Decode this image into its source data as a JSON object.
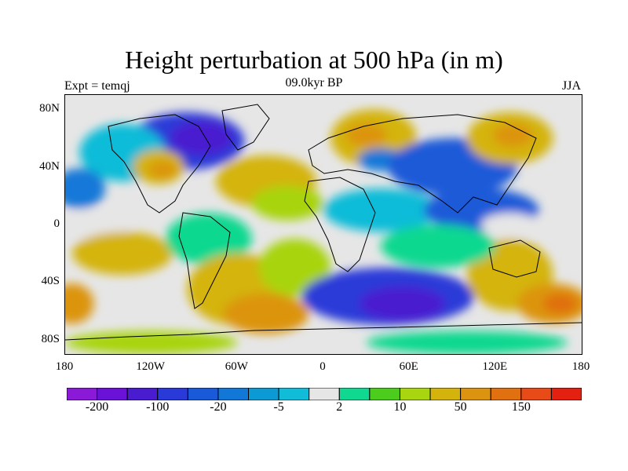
{
  "title": "Height perturbation at 500 hPa (in m)",
  "left_string": "Expt = temqj",
  "center_string": "09.0kyr BP",
  "right_string": "JJA",
  "map": {
    "projection": "cylindrical-equidistant",
    "lon_range": [
      -180,
      180
    ],
    "lat_range": [
      -90,
      90
    ],
    "lat_ticks": [
      {
        "value": 80,
        "label": "80N"
      },
      {
        "value": 40,
        "label": "40N"
      },
      {
        "value": 0,
        "label": "0"
      },
      {
        "value": -40,
        "label": "40S"
      },
      {
        "value": -80,
        "label": "80S"
      }
    ],
    "lon_ticks": [
      {
        "value": -180,
        "label": "180"
      },
      {
        "value": -120,
        "label": "120W"
      },
      {
        "value": -60,
        "label": "60W"
      },
      {
        "value": 0,
        "label": "0"
      },
      {
        "value": 60,
        "label": "60E"
      },
      {
        "value": 120,
        "label": "120E"
      },
      {
        "value": 180,
        "label": "180"
      }
    ],
    "background_color": "#e6e6e6",
    "coastline_color": "#000000"
  },
  "colorbar": {
    "colors": [
      "#8a1ad8",
      "#6a12d8",
      "#4a1cd0",
      "#2a3ad8",
      "#1a5ad8",
      "#1278d8",
      "#0c9ad4",
      "#10bcd8",
      "#e6e6e6",
      "#10d890",
      "#4ccc1c",
      "#a8d410",
      "#d4b40c",
      "#dc9410",
      "#e07010",
      "#e84a18",
      "#e42010"
    ],
    "label_positions_index": [
      1,
      3,
      5,
      7,
      9,
      11,
      13,
      15
    ],
    "labels": [
      "-200",
      "-100",
      "-20",
      "-5",
      "2",
      "10",
      "50",
      "150"
    ]
  },
  "field_blobs": [
    {
      "lon": -95,
      "lat": 58,
      "rx": 40,
      "ry": 20,
      "color": "#2a3ad8"
    },
    {
      "lon": -85,
      "lat": 60,
      "rx": 22,
      "ry": 12,
      "color": "#4a1cd0"
    },
    {
      "lon": -140,
      "lat": 50,
      "rx": 30,
      "ry": 20,
      "color": "#10bcd8"
    },
    {
      "lon": -115,
      "lat": 40,
      "rx": 18,
      "ry": 12,
      "color": "#d4b40c"
    },
    {
      "lon": -112,
      "lat": 38,
      "rx": 10,
      "ry": 6,
      "color": "#dc9410"
    },
    {
      "lon": -40,
      "lat": 30,
      "rx": 35,
      "ry": 18,
      "color": "#d4b40c"
    },
    {
      "lon": -25,
      "lat": 15,
      "rx": 25,
      "ry": 12,
      "color": "#a8d410"
    },
    {
      "lon": 35,
      "lat": 60,
      "rx": 30,
      "ry": 20,
      "color": "#d4b40c"
    },
    {
      "lon": 30,
      "lat": 62,
      "rx": 14,
      "ry": 8,
      "color": "#dc9410"
    },
    {
      "lon": 40,
      "lat": 45,
      "rx": 16,
      "ry": 8,
      "color": "#1278d8"
    },
    {
      "lon": 90,
      "lat": 40,
      "rx": 45,
      "ry": 20,
      "color": "#1a5ad8"
    },
    {
      "lon": 130,
      "lat": 60,
      "rx": 30,
      "ry": 18,
      "color": "#d4b40c"
    },
    {
      "lon": 132,
      "lat": 62,
      "rx": 14,
      "ry": 8,
      "color": "#dc9410"
    },
    {
      "lon": -170,
      "lat": 25,
      "rx": 18,
      "ry": 14,
      "color": "#1278d8"
    },
    {
      "lon": -160,
      "lat": 0,
      "rx": 25,
      "ry": 10,
      "color": "#e6e6e6"
    },
    {
      "lon": -140,
      "lat": -20,
      "rx": 35,
      "ry": 15,
      "color": "#d4b40c"
    },
    {
      "lon": -80,
      "lat": -10,
      "rx": 30,
      "ry": 18,
      "color": "#10d890"
    },
    {
      "lon": -60,
      "lat": -45,
      "rx": 35,
      "ry": 25,
      "color": "#d4b40c"
    },
    {
      "lon": -40,
      "lat": -62,
      "rx": 30,
      "ry": 14,
      "color": "#dc9410"
    },
    {
      "lon": -20,
      "lat": -30,
      "rx": 25,
      "ry": 20,
      "color": "#a8d410"
    },
    {
      "lon": 45,
      "lat": -50,
      "rx": 60,
      "ry": 20,
      "color": "#2a3ad8"
    },
    {
      "lon": 55,
      "lat": -55,
      "rx": 30,
      "ry": 12,
      "color": "#4a1cd0"
    },
    {
      "lon": 130,
      "lat": -35,
      "rx": 30,
      "ry": 25,
      "color": "#d4b40c"
    },
    {
      "lon": 160,
      "lat": -55,
      "rx": 25,
      "ry": 14,
      "color": "#dc9410"
    },
    {
      "lon": 165,
      "lat": -55,
      "rx": 12,
      "ry": 7,
      "color": "#e07010"
    },
    {
      "lon": -175,
      "lat": -55,
      "rx": 15,
      "ry": 14,
      "color": "#dc9410"
    },
    {
      "lon": 40,
      "lat": 10,
      "rx": 40,
      "ry": 15,
      "color": "#10bcd8"
    },
    {
      "lon": 110,
      "lat": 10,
      "rx": 40,
      "ry": 15,
      "color": "#1a5ad8"
    },
    {
      "lon": 130,
      "lat": 0,
      "rx": 20,
      "ry": 8,
      "color": "#e6e6e6"
    },
    {
      "lon": 80,
      "lat": -15,
      "rx": 40,
      "ry": 15,
      "color": "#10d890"
    },
    {
      "lon": -120,
      "lat": -82,
      "rx": 60,
      "ry": 8,
      "color": "#a8d410"
    },
    {
      "lon": 100,
      "lat": -82,
      "rx": 70,
      "ry": 8,
      "color": "#10d890"
    }
  ]
}
